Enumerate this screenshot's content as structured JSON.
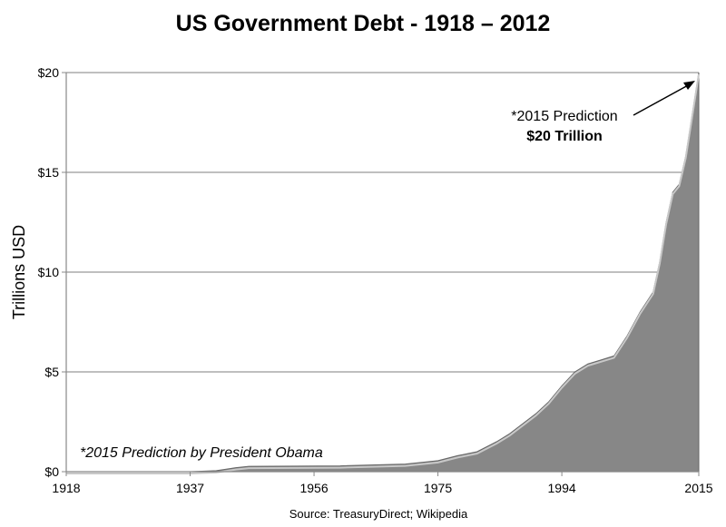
{
  "chart_data": {
    "type": "area",
    "title": "US Government Debt - 1918 – 2012",
    "ylabel": "Trillions  USD",
    "xlabel": "",
    "xlim": [
      1918,
      2015
    ],
    "ylim": [
      0,
      20
    ],
    "x_ticks": [
      "1918",
      "1937",
      "1956",
      "1975",
      "1994",
      "2015"
    ],
    "y_ticks": [
      "$0",
      "$5",
      "$10",
      "$15",
      "$20"
    ],
    "grid": "horizontal",
    "fill_color": "#878787",
    "x": [
      1918,
      1937,
      1941,
      1944,
      1946,
      1960,
      1970,
      1975,
      1978,
      1981,
      1984,
      1986,
      1988,
      1990,
      1992,
      1994,
      1996,
      1998,
      2000,
      2002,
      2004,
      2006,
      2008,
      2009,
      2010,
      2011,
      2012,
      2013,
      2015
    ],
    "values": [
      0,
      0,
      0.05,
      0.2,
      0.27,
      0.29,
      0.38,
      0.55,
      0.8,
      1.0,
      1.5,
      1.9,
      2.4,
      2.9,
      3.5,
      4.3,
      5.0,
      5.4,
      5.6,
      5.8,
      6.8,
      8.0,
      9.0,
      10.5,
      12.5,
      14.0,
      14.4,
      15.8,
      20
    ],
    "annotations": {
      "prediction_line1": "*2015 Prediction",
      "prediction_line2": "$20 Trillion",
      "footnote": "*2015 Prediction by President Obama",
      "source": "Source: TreasuryDirect; Wikipedia"
    }
  }
}
